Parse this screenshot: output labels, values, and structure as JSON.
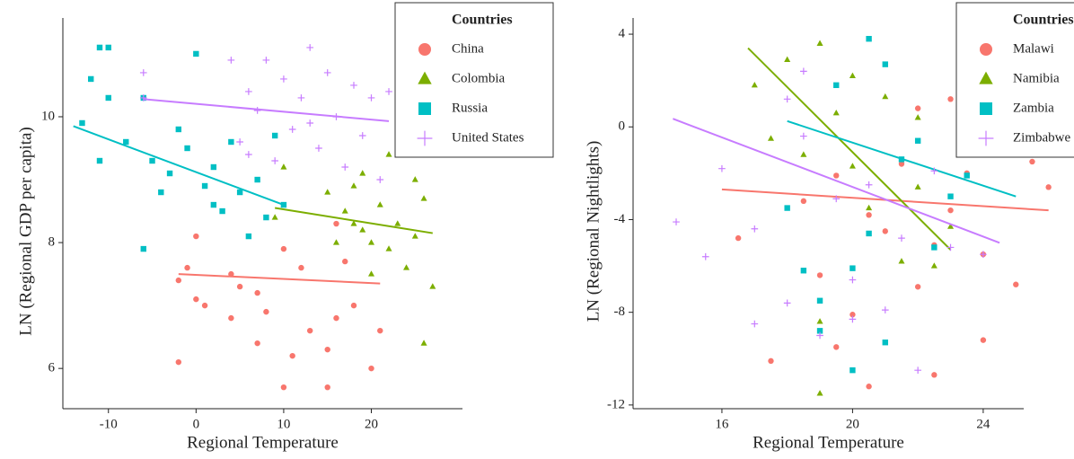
{
  "chart_data": [
    {
      "type": "scatter",
      "x_label": "Regional Temperature",
      "y_label": "LN (Regional GDP per capita)",
      "legend_title": "Countries",
      "legend": "upper right",
      "xlim": [
        -15.2,
        30.4
      ],
      "ylim": [
        5.36,
        11.57
      ],
      "xticks": [
        -10,
        0,
        10,
        20
      ],
      "yticks": [
        6,
        8,
        10
      ],
      "series": [
        {
          "name": "China",
          "color": "#F8766D",
          "marker": "circle",
          "x": [
            -2,
            -2,
            -1,
            0,
            0,
            1,
            4,
            4,
            5,
            7,
            7,
            8,
            10,
            10,
            12,
            13,
            15,
            15,
            16,
            17,
            18,
            20,
            21,
            16,
            11
          ],
          "values": [
            6.1,
            7.4,
            7.6,
            7.1,
            8.1,
            7.0,
            6.8,
            7.5,
            7.3,
            6.4,
            7.2,
            6.9,
            5.7,
            7.9,
            7.6,
            6.6,
            5.7,
            6.3,
            6.8,
            7.7,
            7.0,
            6.0,
            6.6,
            8.3,
            6.2
          ],
          "fit": {
            "x": [
              -2,
              21
            ],
            "values": [
              7.5,
              7.35
            ]
          }
        },
        {
          "name": "Colombia",
          "color": "#7CAE00",
          "marker": "triangle",
          "x": [
            9,
            10,
            15,
            16,
            17,
            18,
            19,
            19,
            20,
            21,
            22,
            22,
            23,
            24,
            25,
            25,
            26,
            26,
            27,
            27,
            20,
            18
          ],
          "values": [
            8.4,
            9.2,
            8.8,
            8.0,
            8.5,
            8.9,
            8.2,
            9.1,
            7.5,
            8.6,
            7.9,
            9.4,
            8.3,
            7.6,
            8.1,
            9.0,
            6.4,
            8.7,
            7.3,
            9.6,
            8.0,
            8.3
          ],
          "fit": {
            "x": [
              9,
              27
            ],
            "values": [
              8.55,
              8.15
            ]
          }
        },
        {
          "name": "Russia",
          "color": "#00BFC4",
          "marker": "square",
          "x": [
            -13,
            -12,
            -11,
            -11,
            -10,
            -10,
            -8,
            -6,
            -6,
            -5,
            -4,
            -3,
            -2,
            -1,
            0,
            1,
            2,
            3,
            4,
            5,
            6,
            7,
            8,
            9,
            2,
            10
          ],
          "values": [
            9.9,
            10.6,
            11.1,
            9.3,
            10.3,
            11.1,
            9.6,
            7.9,
            10.3,
            9.3,
            8.8,
            9.1,
            9.8,
            9.5,
            11.0,
            8.9,
            9.2,
            8.5,
            9.6,
            8.8,
            8.1,
            9.0,
            8.4,
            9.7,
            8.6,
            8.6
          ],
          "fit": {
            "x": [
              -14,
              10
            ],
            "values": [
              9.85,
              8.6
            ]
          }
        },
        {
          "name": "United States",
          "color": "#C77CFF",
          "marker": "plus",
          "x": [
            -6,
            -6,
            4,
            5,
            6,
            7,
            8,
            9,
            10,
            11,
            12,
            13,
            14,
            15,
            16,
            17,
            18,
            19,
            20,
            21,
            22,
            6,
            13
          ],
          "values": [
            10.7,
            10.3,
            10.9,
            9.6,
            10.4,
            10.1,
            10.9,
            9.3,
            10.6,
            9.8,
            10.3,
            11.1,
            9.5,
            10.7,
            10.0,
            9.2,
            10.5,
            9.7,
            10.3,
            9.0,
            10.4,
            9.4,
            9.9
          ],
          "fit": {
            "x": [
              -6,
              22
            ],
            "values": [
              10.28,
              9.93
            ]
          }
        }
      ]
    },
    {
      "type": "scatter",
      "x_label": "Regional Temperature",
      "y_label": "LN (Regional Nightlights)",
      "legend_title": "Countries",
      "legend": "upper right",
      "xlim": [
        13.28,
        25.24
      ],
      "ylim": [
        -12.16,
        4.7
      ],
      "xticks": [
        16,
        20,
        24
      ],
      "yticks": [
        4,
        0,
        -4,
        -8,
        -12
      ],
      "series": [
        {
          "name": "Malawi",
          "color": "#F8766D",
          "marker": "circle",
          "x": [
            16.5,
            17.5,
            18.5,
            19,
            19.5,
            20,
            20.5,
            21,
            21.5,
            22,
            22,
            22.5,
            23,
            23.5,
            24,
            24,
            24.5,
            25,
            25.5,
            26,
            20.5,
            22.5,
            23,
            19.5
          ],
          "values": [
            -4.8,
            -10.1,
            -3.2,
            -6.4,
            -2.1,
            -8.1,
            -11.2,
            -4.5,
            -1.6,
            -6.9,
            0.8,
            -10.7,
            -3.6,
            -2.0,
            -5.5,
            -9.2,
            -1.1,
            -6.8,
            -1.5,
            -2.6,
            -3.8,
            -5.1,
            1.2,
            -9.5
          ],
          "fit": {
            "x": [
              16,
              26
            ],
            "values": [
              -2.7,
              -3.6
            ]
          }
        },
        {
          "name": "Namibia",
          "color": "#7CAE00",
          "marker": "triangle",
          "x": [
            17,
            17.5,
            18,
            18.5,
            19,
            19,
            19.5,
            20,
            20.5,
            21,
            21.5,
            22,
            22,
            22.5,
            23,
            19,
            20
          ],
          "values": [
            1.8,
            -0.5,
            2.9,
            -1.2,
            3.6,
            -11.5,
            0.6,
            2.2,
            -3.5,
            1.3,
            -5.8,
            -2.6,
            0.4,
            -6.0,
            -4.3,
            -8.4,
            -1.7
          ],
          "fit": {
            "x": [
              16.8,
              23
            ],
            "values": [
              3.4,
              -5.3
            ]
          }
        },
        {
          "name": "Zambia",
          "color": "#00BFC4",
          "marker": "square",
          "x": [
            18,
            18.5,
            19,
            19.5,
            20,
            20.5,
            20.5,
            21,
            21,
            21.5,
            22,
            22.5,
            23,
            23.5,
            19,
            20
          ],
          "values": [
            -3.5,
            -6.2,
            -8.8,
            1.8,
            -10.5,
            3.8,
            -4.6,
            2.7,
            -9.3,
            -1.4,
            -0.6,
            -5.2,
            -3.0,
            -2.1,
            -7.5,
            -6.1
          ],
          "fit": {
            "x": [
              18,
              25
            ],
            "values": [
              0.25,
              -3.0
            ]
          }
        },
        {
          "name": "Zimbabwe",
          "color": "#C77CFF",
          "marker": "plus",
          "x": [
            14.6,
            15.5,
            16,
            17,
            17,
            18,
            18,
            18.5,
            19,
            19.5,
            20,
            20.5,
            21,
            21.5,
            22,
            22.5,
            23,
            24,
            18.5,
            20
          ],
          "values": [
            -4.1,
            -5.6,
            -1.8,
            -4.4,
            -8.5,
            1.2,
            -7.6,
            2.4,
            -9.0,
            -3.1,
            -6.6,
            -2.5,
            -7.9,
            -4.8,
            -10.5,
            -1.9,
            -5.2,
            -5.5,
            -0.4,
            -8.3
          ],
          "fit": {
            "x": [
              14.5,
              24.5
            ],
            "values": [
              0.35,
              -5.0
            ]
          }
        }
      ]
    }
  ]
}
